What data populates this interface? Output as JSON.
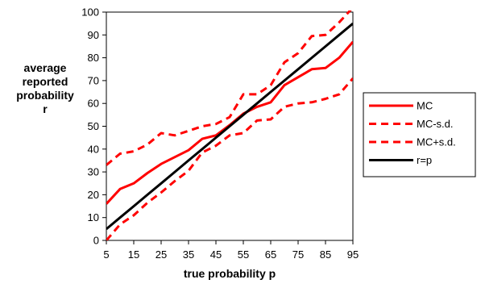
{
  "chart_data": {
    "type": "line",
    "title": "",
    "xlabel": "true probability p",
    "ylabel_lines": [
      "average",
      "reported",
      "probability",
      "r"
    ],
    "x": [
      5,
      10,
      15,
      20,
      25,
      30,
      35,
      40,
      45,
      50,
      55,
      60,
      65,
      70,
      75,
      80,
      85,
      90,
      95
    ],
    "xlim": [
      5,
      95
    ],
    "ylim": [
      0,
      100
    ],
    "xticks": [
      5,
      15,
      25,
      35,
      45,
      55,
      65,
      75,
      85,
      95
    ],
    "yticks": [
      0,
      10,
      20,
      30,
      40,
      50,
      60,
      70,
      80,
      90,
      100
    ],
    "grid": false,
    "legend_position": "right",
    "series": [
      {
        "name": "MC",
        "style": "solid",
        "color": "#ff0000",
        "values": [
          16,
          22.5,
          25,
          29.5,
          33.5,
          36.5,
          39.5,
          44.5,
          46,
          50.5,
          55.5,
          58.5,
          60.5,
          68,
          71.5,
          75,
          75.5,
          80,
          87
        ]
      },
      {
        "name": "MC-s.d.",
        "style": "dashed",
        "color": "#ff0000",
        "values": [
          0,
          7,
          11,
          16.5,
          21,
          26,
          30.5,
          38.5,
          41.5,
          46,
          47,
          52.5,
          53,
          58.5,
          60,
          60.5,
          62,
          64,
          71
        ]
      },
      {
        "name": "MC+s.d.",
        "style": "dashed",
        "color": "#ff0000",
        "values": [
          33,
          38,
          39,
          42,
          47,
          46,
          48,
          50,
          51,
          54,
          64,
          64,
          68,
          78,
          82,
          89.5,
          90,
          95.5,
          102
        ]
      },
      {
        "name": "r=p",
        "style": "solid",
        "color": "#000000",
        "values": [
          5,
          10,
          15,
          20,
          25,
          30,
          35,
          40,
          45,
          50,
          55,
          60,
          65,
          70,
          75,
          80,
          85,
          90,
          95
        ]
      }
    ]
  }
}
